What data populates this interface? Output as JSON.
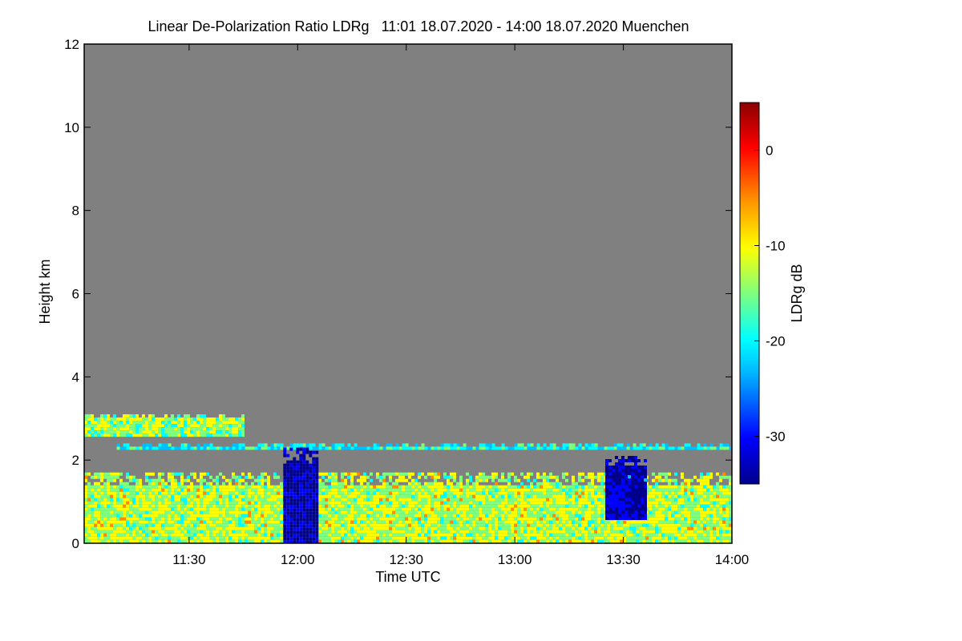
{
  "chart_data": {
    "type": "heatmap",
    "title": "Linear De-Polarization Ratio LDRg   11:01 18.07.2020 - 14:00 18.07.2020 Muenchen",
    "xlabel": "Time UTC",
    "ylabel": "Height km",
    "colorbar_label": "LDRg dB",
    "xlim": [
      "11:01",
      "14:00"
    ],
    "ylim": [
      0,
      12
    ],
    "x_ticks": [
      "11:30",
      "12:00",
      "12:30",
      "13:00",
      "13:30",
      "14:00"
    ],
    "y_ticks": [
      "0",
      "2",
      "4",
      "6",
      "8",
      "10",
      "12"
    ],
    "colorbar_range": [
      -35,
      5
    ],
    "colorbar_ticks": [
      "0",
      "-10",
      "-20",
      "-30"
    ],
    "colormap": [
      "#00008b",
      "#0000ff",
      "#00bfff",
      "#00ffff",
      "#7fff7f",
      "#ffff00",
      "#ff8c00",
      "#ff0000",
      "#8b0000"
    ],
    "background_color": "#808080",
    "features": [
      {
        "name": "boundary-layer",
        "start": "11:01",
        "end": "14:00",
        "height_from": 0,
        "height_to": 1.7,
        "ldr": -13
      },
      {
        "name": "aerosol-layer-top",
        "start": "11:01",
        "end": "11:45",
        "height_from": 2.6,
        "height_to": 3.1,
        "ldr": -14
      },
      {
        "name": "thin-layer",
        "start": "11:10",
        "end": "14:00",
        "height_from": 2.3,
        "height_to": 2.4,
        "ldr": -20
      },
      {
        "name": "low-ldr-cloud-1",
        "start": "11:56",
        "end": "12:05",
        "height_from": 0,
        "height_to": 2.3,
        "ldr": -32
      },
      {
        "name": "low-ldr-cloud-2",
        "start": "13:25",
        "end": "13:36",
        "height_from": 0.6,
        "height_to": 2.1,
        "ldr": -31
      }
    ]
  }
}
